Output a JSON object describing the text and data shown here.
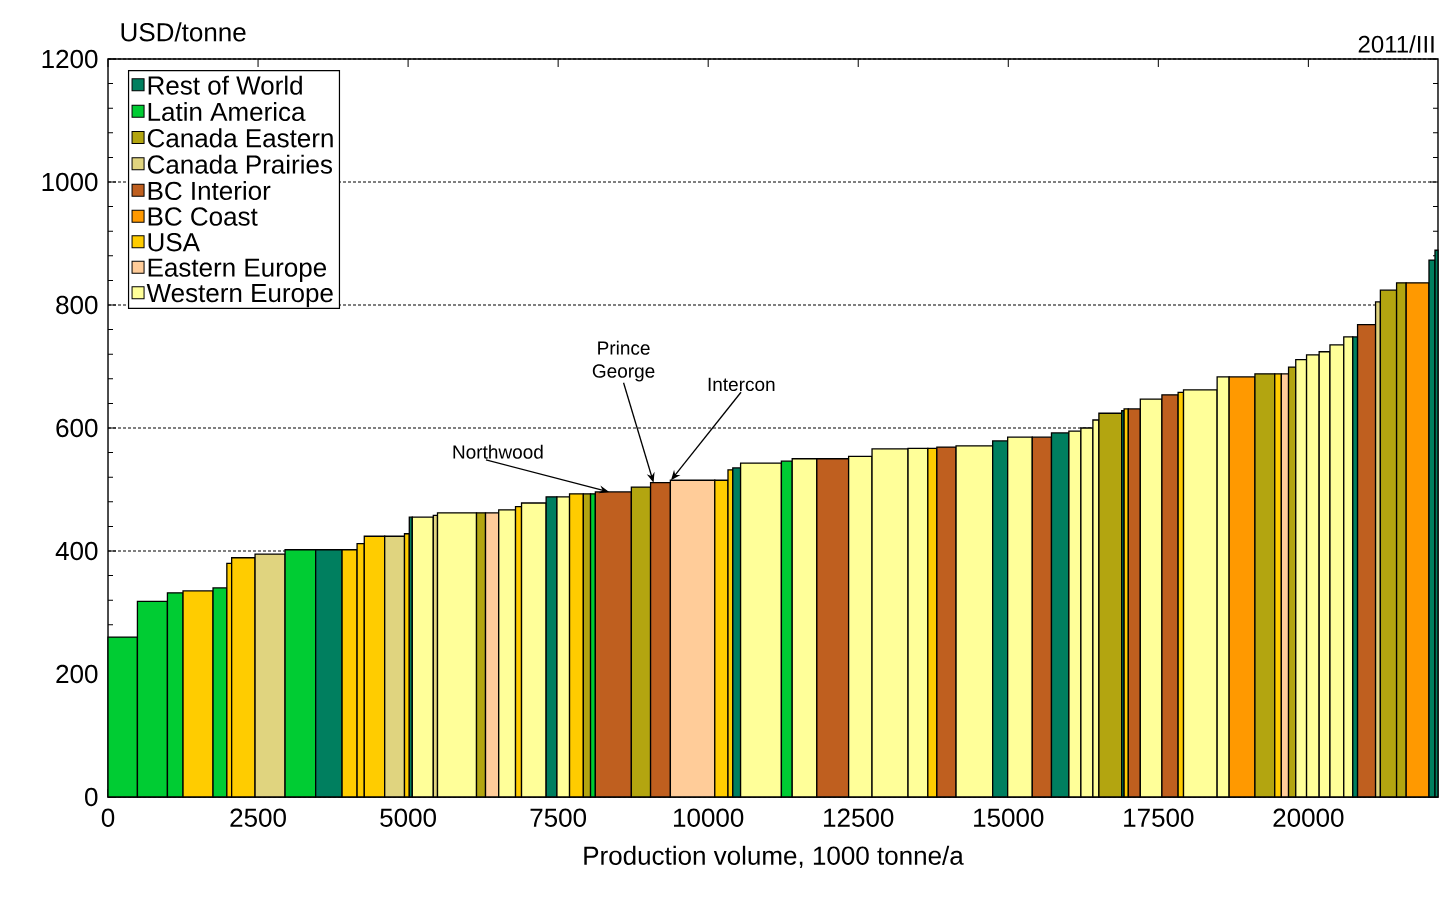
{
  "chart_data": {
    "type": "histogram",
    "xlabel": "Production volume, 1000 tonne/a",
    "ylabel": "USD/tonne",
    "annotations": [
      {
        "text": "Northwood",
        "x": 8350,
        "y": 496
      },
      {
        "text": "Prince George",
        "x": 9090,
        "y": 511
      },
      {
        "text": "Intercon",
        "x": 9380,
        "y": 515
      },
      "2011/III"
    ],
    "bins": [
      0,
      490,
      990,
      1250,
      1750,
      1980,
      2060,
      2450,
      2950,
      3460,
      3900,
      4150,
      4270,
      4610,
      4940,
      5020,
      5070,
      5420,
      5490,
      6140,
      6290,
      6510,
      6790,
      6890,
      7300,
      7480,
      7690,
      7920,
      8040,
      8120,
      8720,
      9040,
      9370,
      10110,
      10330,
      10410,
      10540,
      11220,
      11400,
      11810,
      12340,
      12730,
      13330,
      13660,
      13810,
      14130,
      14740,
      14990,
      15400,
      15720,
      16010,
      16210,
      16410,
      16510,
      16890,
      16930,
      17000,
      17200,
      17560,
      17830,
      17920,
      18480,
      18680,
      19110,
      19440,
      19550,
      19670,
      19790,
      19970,
      20180,
      20360,
      20590,
      20740,
      20820,
      21120,
      21200,
      21470,
      21630,
      22010,
      22110,
      22160
    ],
    "series": [
      {
        "name": "Rest of World",
        "color": "#007f5f",
        "values": [
          null,
          null,
          null,
          null,
          null,
          null,
          null,
          null,
          null,
          402,
          null,
          null,
          null,
          null,
          null,
          455,
          null,
          null,
          null,
          null,
          null,
          null,
          null,
          null,
          488,
          null,
          null,
          null,
          null,
          null,
          null,
          null,
          null,
          null,
          null,
          535,
          null,
          null,
          null,
          null,
          null,
          null,
          null,
          null,
          null,
          null,
          579,
          null,
          null,
          592,
          null,
          null,
          null,
          null,
          628,
          null,
          null,
          null,
          null,
          null,
          null,
          null,
          null,
          null,
          null,
          null,
          null,
          null,
          null,
          null,
          null,
          null,
          748,
          null,
          null,
          null,
          null,
          null,
          873,
          889
        ]
      },
      {
        "name": "Latin America",
        "color": "#00cc33",
        "values": [
          260,
          318,
          332,
          null,
          340,
          null,
          null,
          null,
          402,
          null,
          null,
          null,
          null,
          null,
          null,
          null,
          null,
          null,
          null,
          null,
          null,
          null,
          null,
          null,
          null,
          null,
          null,
          null,
          493,
          null,
          null,
          null,
          null,
          null,
          null,
          null,
          null,
          546,
          null,
          null,
          null,
          null,
          null,
          null,
          null,
          null,
          null,
          null,
          null,
          null,
          null,
          null,
          null,
          null,
          null,
          null,
          null,
          null,
          null,
          null,
          null,
          null,
          null,
          null,
          null,
          null,
          null,
          null,
          null,
          null,
          null,
          null,
          null,
          null,
          null,
          null,
          null,
          null,
          null,
          null
        ]
      },
      {
        "name": "Canada Eastern",
        "color": "#b3a510",
        "values": [
          null,
          null,
          null,
          null,
          null,
          null,
          null,
          null,
          null,
          null,
          null,
          null,
          null,
          null,
          null,
          null,
          null,
          null,
          null,
          462,
          null,
          null,
          null,
          null,
          null,
          null,
          null,
          493,
          null,
          null,
          504,
          null,
          null,
          null,
          null,
          null,
          null,
          null,
          null,
          null,
          null,
          null,
          null,
          null,
          null,
          null,
          null,
          null,
          null,
          null,
          null,
          null,
          null,
          624,
          null,
          null,
          null,
          null,
          null,
          null,
          null,
          null,
          null,
          688,
          null,
          null,
          699,
          null,
          null,
          null,
          null,
          null,
          null,
          null,
          null,
          824,
          836,
          null,
          null,
          null
        ]
      },
      {
        "name": "Canada Prairies",
        "color": "#e0d47f",
        "values": [
          null,
          null,
          null,
          null,
          null,
          null,
          null,
          395,
          null,
          null,
          null,
          null,
          null,
          424,
          null,
          null,
          null,
          458,
          null,
          null,
          null,
          null,
          null,
          null,
          null,
          null,
          null,
          null,
          null,
          null,
          null,
          null,
          null,
          null,
          null,
          null,
          null,
          null,
          null,
          null,
          null,
          null,
          null,
          null,
          null,
          null,
          null,
          null,
          null,
          null,
          null,
          null,
          null,
          null,
          null,
          null,
          null,
          null,
          null,
          null,
          null,
          null,
          null,
          null,
          null,
          null,
          null,
          null,
          null,
          null,
          null,
          null,
          null,
          null,
          805,
          null,
          null,
          null,
          null,
          null
        ]
      },
      {
        "name": "BC Interior",
        "color": "#bf5f1f",
        "values": [
          null,
          null,
          null,
          null,
          null,
          null,
          null,
          null,
          null,
          null,
          null,
          null,
          null,
          null,
          null,
          null,
          null,
          null,
          null,
          null,
          null,
          null,
          null,
          null,
          null,
          null,
          null,
          null,
          null,
          496,
          null,
          511,
          null,
          null,
          null,
          null,
          null,
          null,
          null,
          550,
          null,
          null,
          null,
          null,
          569,
          null,
          null,
          null,
          585,
          null,
          null,
          null,
          null,
          null,
          null,
          null,
          631,
          null,
          654,
          null,
          null,
          null,
          null,
          null,
          null,
          null,
          null,
          null,
          null,
          null,
          null,
          null,
          null,
          768,
          null,
          null,
          null,
          null,
          null,
          null
        ]
      },
      {
        "name": "BC Coast",
        "color": "#ff9900",
        "values": [
          null,
          null,
          null,
          null,
          null,
          null,
          null,
          null,
          null,
          null,
          null,
          null,
          null,
          null,
          null,
          null,
          null,
          null,
          null,
          null,
          null,
          null,
          null,
          null,
          null,
          null,
          null,
          null,
          null,
          null,
          null,
          null,
          null,
          null,
          null,
          null,
          null,
          null,
          null,
          null,
          null,
          null,
          null,
          null,
          null,
          null,
          null,
          null,
          null,
          null,
          null,
          null,
          null,
          null,
          null,
          null,
          null,
          null,
          null,
          null,
          null,
          null,
          683,
          null,
          null,
          null,
          null,
          null,
          null,
          null,
          null,
          null,
          null,
          null,
          null,
          null,
          null,
          836,
          null,
          null
        ]
      },
      {
        "name": "USA",
        "color": "#ffcc00",
        "values": [
          null,
          null,
          null,
          335,
          null,
          380,
          389,
          null,
          null,
          null,
          402,
          412,
          424,
          null,
          428,
          null,
          null,
          null,
          null,
          null,
          null,
          null,
          472,
          null,
          null,
          null,
          493,
          null,
          null,
          null,
          null,
          null,
          null,
          515,
          532,
          null,
          null,
          null,
          null,
          null,
          null,
          null,
          null,
          567,
          null,
          null,
          null,
          null,
          null,
          null,
          null,
          null,
          null,
          null,
          null,
          631,
          null,
          null,
          null,
          658,
          null,
          null,
          null,
          null,
          688,
          null,
          null,
          null,
          null,
          null,
          null,
          null,
          null,
          null,
          null,
          null,
          null,
          null,
          null,
          null
        ]
      },
      {
        "name": "Eastern Europe",
        "color": "#ffcc99",
        "values": [
          null,
          null,
          null,
          null,
          null,
          null,
          null,
          null,
          null,
          null,
          null,
          null,
          null,
          null,
          null,
          null,
          null,
          null,
          null,
          null,
          462,
          null,
          null,
          null,
          null,
          null,
          null,
          null,
          null,
          null,
          null,
          null,
          515,
          null,
          null,
          null,
          null,
          null,
          null,
          null,
          null,
          null,
          null,
          null,
          null,
          null,
          null,
          null,
          null,
          null,
          null,
          null,
          null,
          null,
          null,
          null,
          null,
          null,
          null,
          null,
          null,
          null,
          null,
          null,
          null,
          688,
          null,
          null,
          null,
          null,
          null,
          null,
          null,
          null,
          null,
          null,
          null,
          null,
          null,
          null
        ]
      },
      {
        "name": "Western Europe",
        "color": "#ffff99",
        "values": [
          null,
          null,
          null,
          null,
          null,
          null,
          null,
          null,
          null,
          null,
          null,
          null,
          null,
          null,
          null,
          null,
          455,
          null,
          462,
          null,
          null,
          467,
          null,
          478,
          null,
          488,
          null,
          null,
          null,
          null,
          null,
          null,
          null,
          null,
          null,
          null,
          543,
          null,
          550,
          null,
          554,
          566,
          567,
          null,
          null,
          571,
          null,
          585,
          null,
          null,
          595,
          600,
          613,
          null,
          null,
          null,
          null,
          647,
          null,
          null,
          662,
          683,
          null,
          null,
          null,
          null,
          null,
          711,
          719,
          724,
          735,
          748,
          null,
          null,
          null,
          null,
          null,
          null,
          null,
          null
        ]
      }
    ],
    "xlim": [
      0,
      22160
    ],
    "ylim": [
      0,
      1200
    ],
    "xticks": [
      0,
      2500,
      5000,
      7500,
      10000,
      12500,
      15000,
      17500,
      20000
    ],
    "yticks": [
      0,
      200,
      400,
      600,
      800,
      1000,
      1200
    ],
    "grid": "y",
    "legend": "top left"
  }
}
